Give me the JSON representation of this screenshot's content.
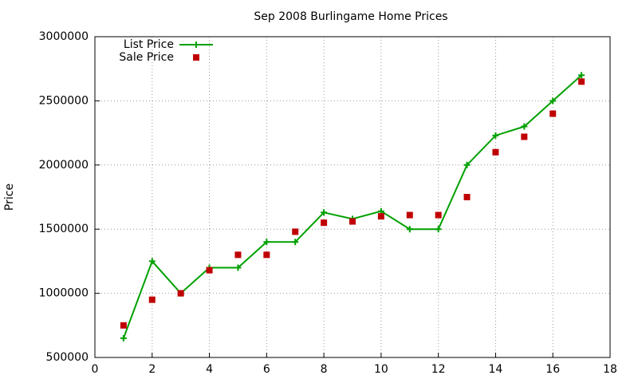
{
  "chart_data": {
    "type": "line",
    "title": "Sep 2008 Burlingame Home Prices",
    "y_label": "Price",
    "x": [
      1,
      2,
      3,
      4,
      5,
      6,
      7,
      8,
      9,
      10,
      11,
      12,
      13,
      14,
      15,
      16,
      17
    ],
    "series": [
      {
        "name": "List Price",
        "color": "#00a000",
        "style": "linespoints",
        "values": [
          650000,
          1250000,
          1000000,
          1200000,
          1200000,
          1400000,
          1400000,
          1630000,
          1580000,
          1640000,
          1500000,
          1500000,
          2000000,
          2230000,
          2300000,
          2500000,
          2700000
        ]
      },
      {
        "name": "Sale Price",
        "color": "#c00000",
        "style": "points",
        "values": [
          750000,
          950000,
          1000000,
          1180000,
          1300000,
          1300000,
          1480000,
          1550000,
          1560000,
          1600000,
          1610000,
          1610000,
          1750000,
          2100000,
          2220000,
          2400000,
          2650000
        ]
      }
    ],
    "xlim": [
      0,
      18
    ],
    "xticks": [
      0,
      2,
      4,
      6,
      8,
      10,
      12,
      14,
      16,
      18
    ],
    "ylim": [
      500000,
      3000000
    ],
    "yticks": [
      500000,
      1000000,
      1500000,
      2000000,
      2500000,
      3000000
    ],
    "grid": true,
    "legend": "top-left"
  }
}
